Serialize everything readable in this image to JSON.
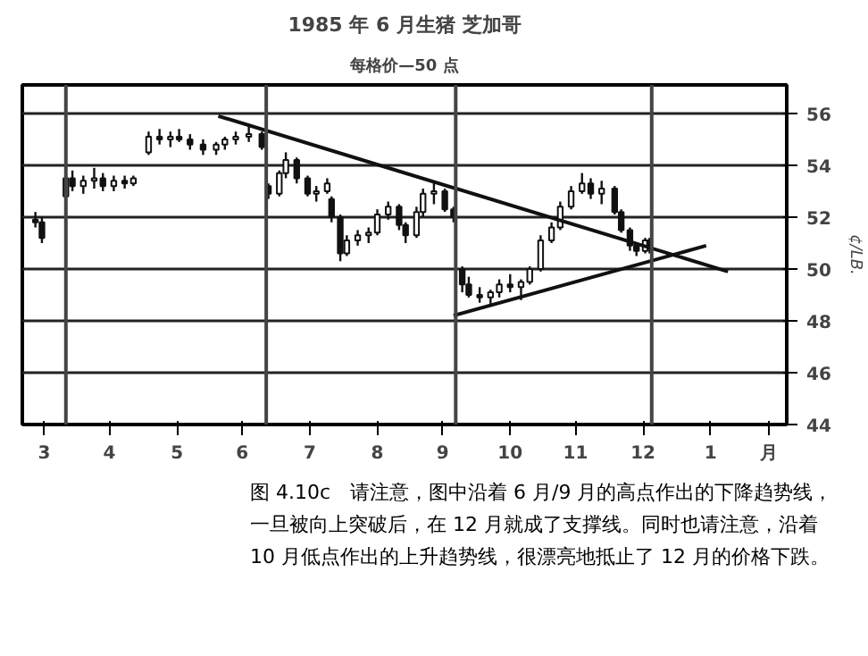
{
  "chart_data": {
    "type": "candlestick",
    "title": "1985 年 6 月生猪 芝加哥",
    "subtitle": "每格价—50 点",
    "ylabel": "¢/LB.",
    "x": [
      "1985-03-12",
      "1985-03-15",
      "1985-03-26",
      "1985-03-29",
      "1985-04-03",
      "1985-04-08",
      "1985-04-12",
      "1985-04-17",
      "1985-04-22",
      "1985-04-26",
      "1985-05-03",
      "1985-05-08",
      "1985-05-13",
      "1985-05-17",
      "1985-05-22",
      "1985-05-28",
      "1985-06-03",
      "1985-06-07",
      "1985-06-12",
      "1985-06-18",
      "1985-06-24",
      "1985-06-27",
      "1985-07-02",
      "1985-07-05",
      "1985-07-10",
      "1985-07-15",
      "1985-07-19",
      "1985-07-24",
      "1985-07-26",
      "1985-07-30",
      "1985-08-02",
      "1985-08-07",
      "1985-08-12",
      "1985-08-16",
      "1985-08-21",
      "1985-08-26",
      "1985-08-29",
      "1985-09-03",
      "1985-09-06",
      "1985-09-11",
      "1985-09-16",
      "1985-09-20",
      "1985-09-24",
      "1985-09-27",
      "1985-10-02",
      "1985-10-07",
      "1985-10-11",
      "1985-10-16",
      "1985-10-21",
      "1985-10-25",
      "1985-10-30",
      "1985-11-04",
      "1985-11-08",
      "1985-11-13",
      "1985-11-18",
      "1985-11-22",
      "1985-11-27",
      "1985-12-03",
      "1985-12-06",
      "1985-12-10",
      "1985-12-13",
      "1985-12-17",
      "1985-12-19"
    ],
    "ohlc": [
      [
        51.9,
        52.2,
        51.6,
        51.8
      ],
      [
        51.8,
        52.0,
        51.0,
        51.2
      ],
      [
        52.8,
        53.7,
        52.7,
        53.5
      ],
      [
        53.5,
        53.8,
        53.0,
        53.2
      ],
      [
        53.2,
        53.6,
        52.9,
        53.4
      ],
      [
        53.4,
        53.9,
        53.1,
        53.5
      ],
      [
        53.5,
        53.7,
        53.0,
        53.2
      ],
      [
        53.2,
        53.6,
        53.0,
        53.4
      ],
      [
        53.4,
        53.6,
        53.1,
        53.3
      ],
      [
        53.3,
        53.6,
        53.2,
        53.5
      ],
      [
        54.5,
        55.3,
        54.4,
        55.1
      ],
      [
        55.1,
        55.4,
        54.8,
        55.0
      ],
      [
        55.0,
        55.3,
        54.7,
        55.1
      ],
      [
        55.1,
        55.4,
        54.9,
        55.0
      ],
      [
        55.0,
        55.2,
        54.6,
        54.8
      ],
      [
        54.8,
        55.0,
        54.4,
        54.6
      ],
      [
        54.6,
        54.9,
        54.4,
        54.8
      ],
      [
        54.8,
        55.1,
        54.6,
        55.0
      ],
      [
        55.0,
        55.3,
        54.8,
        55.1
      ],
      [
        55.1,
        55.6,
        54.9,
        55.2
      ],
      [
        55.2,
        55.3,
        54.6,
        54.7
      ],
      [
        53.2,
        53.3,
        52.7,
        52.9
      ],
      [
        52.9,
        53.8,
        52.8,
        53.7
      ],
      [
        53.7,
        54.5,
        53.5,
        54.2
      ],
      [
        54.2,
        54.3,
        53.3,
        53.5
      ],
      [
        53.5,
        53.6,
        52.8,
        52.9
      ],
      [
        52.9,
        53.2,
        52.6,
        53.0
      ],
      [
        53.0,
        53.5,
        52.9,
        53.3
      ],
      [
        52.7,
        52.8,
        51.8,
        52.0
      ],
      [
        52.0,
        52.1,
        50.3,
        50.6
      ],
      [
        50.6,
        51.3,
        50.5,
        51.1
      ],
      [
        51.1,
        51.5,
        50.9,
        51.3
      ],
      [
        51.3,
        51.6,
        51.0,
        51.4
      ],
      [
        51.4,
        52.3,
        51.3,
        52.1
      ],
      [
        52.1,
        52.6,
        51.9,
        52.4
      ],
      [
        52.4,
        52.5,
        51.5,
        51.7
      ],
      [
        51.7,
        51.8,
        51.0,
        51.3
      ],
      [
        51.3,
        52.4,
        51.2,
        52.2
      ],
      [
        52.2,
        53.1,
        52.0,
        52.9
      ],
      [
        52.9,
        53.4,
        52.5,
        53.0
      ],
      [
        53.0,
        53.1,
        52.2,
        52.3
      ],
      [
        52.3,
        52.4,
        51.8,
        52.0
      ],
      [
        50.0,
        50.1,
        49.1,
        49.4
      ],
      [
        49.4,
        49.7,
        48.9,
        49.0
      ],
      [
        49.0,
        49.3,
        48.7,
        48.9
      ],
      [
        48.9,
        49.2,
        48.6,
        49.1
      ],
      [
        49.1,
        49.6,
        48.9,
        49.4
      ],
      [
        49.4,
        49.8,
        49.1,
        49.3
      ],
      [
        49.3,
        49.6,
        48.8,
        49.5
      ],
      [
        49.5,
        50.1,
        49.4,
        50.0
      ],
      [
        50.0,
        51.3,
        49.9,
        51.1
      ],
      [
        51.1,
        51.8,
        51.0,
        51.6
      ],
      [
        51.6,
        52.6,
        51.5,
        52.4
      ],
      [
        52.4,
        53.2,
        52.3,
        53.0
      ],
      [
        53.0,
        53.7,
        52.9,
        53.3
      ],
      [
        53.3,
        53.5,
        52.7,
        52.9
      ],
      [
        52.9,
        53.4,
        52.5,
        53.1
      ],
      [
        53.1,
        53.2,
        52.1,
        52.2
      ],
      [
        52.2,
        52.3,
        51.4,
        51.5
      ],
      [
        51.5,
        51.6,
        50.7,
        50.9
      ],
      [
        50.9,
        51.0,
        50.5,
        50.7
      ],
      [
        50.7,
        51.2,
        50.6,
        51.1
      ],
      [
        51.1,
        51.2,
        50.6,
        50.8
      ]
    ],
    "color": "#111111",
    "series": [
      {
        "type": "line",
        "color": "#111111",
        "x": [
          "1985-06-04",
          "1986-01-24"
        ],
        "values": [
          55.9,
          49.9
        ]
      },
      {
        "type": "line",
        "color": "#111111",
        "x": [
          "1985-09-20",
          "1986-01-14"
        ],
        "values": [
          48.2,
          50.9
        ]
      }
    ],
    "xlim": [
      "1985-03-06",
      "1986-02-20"
    ],
    "xticks": [
      {
        "value": "1985-03-16",
        "label": "3"
      },
      {
        "value": "1985-04-15",
        "label": "4"
      },
      {
        "value": "1985-05-16",
        "label": "5"
      },
      {
        "value": "1985-06-15",
        "label": "6"
      },
      {
        "value": "1985-07-16",
        "label": "7"
      },
      {
        "value": "1985-08-16",
        "label": "8"
      },
      {
        "value": "1985-09-15",
        "label": "9"
      },
      {
        "value": "1985-10-16",
        "label": "10"
      },
      {
        "value": "1985-11-15",
        "label": "11"
      },
      {
        "value": "1985-12-16",
        "label": "12"
      },
      {
        "value": "1986-01-16",
        "label": "1"
      },
      {
        "value": "1986-02-12",
        "label": "月"
      }
    ],
    "ylim": [
      44,
      57.1
    ],
    "yticks": [
      44,
      46,
      48,
      50,
      52,
      54,
      56
    ],
    "grid": "y",
    "ref_lines": [
      {
        "axis": "x",
        "value": "1985-03-26",
        "label": null
      },
      {
        "axis": "x",
        "value": "1985-06-26",
        "label": null
      },
      {
        "axis": "x",
        "value": "1985-09-21",
        "label": null
      },
      {
        "axis": "x",
        "value": "1985-12-20",
        "label": null
      }
    ],
    "annotations": [
      "图 4.10c　请注意，图中沿着 6 月/9 月的高点作出的下降趋势线，一旦被向上突破后，在 12 月就成了支撑线。同时也请注意，沿着 10 月低点作出的上升趋势线，很漂亮地抵止了 12 月的价格下跌。"
    ]
  }
}
